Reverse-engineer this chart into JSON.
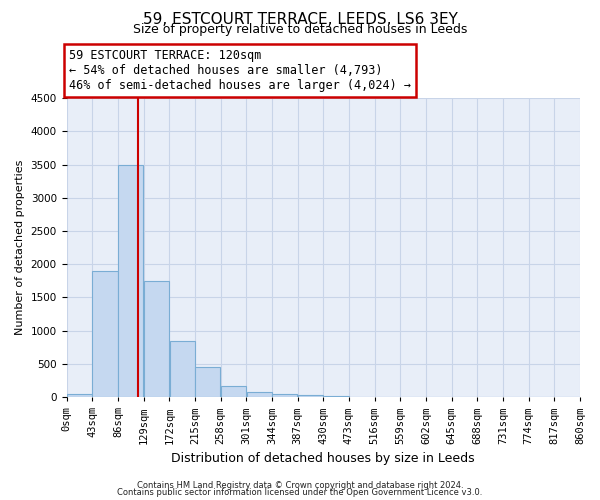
{
  "title": "59, ESTCOURT TERRACE, LEEDS, LS6 3EY",
  "subtitle": "Size of property relative to detached houses in Leeds",
  "xlabel": "Distribution of detached houses by size in Leeds",
  "ylabel": "Number of detached properties",
  "bin_edges": [
    0,
    43,
    86,
    129,
    172,
    215,
    258,
    301,
    344,
    387,
    430,
    473,
    516,
    559,
    602,
    645,
    688,
    731,
    774,
    817,
    860
  ],
  "bar_heights": [
    50,
    1900,
    3500,
    1750,
    850,
    450,
    170,
    80,
    40,
    30,
    10,
    5,
    2,
    1,
    0,
    0,
    0,
    0,
    0,
    0
  ],
  "bar_color": "#c5d8f0",
  "bar_edge_color": "#7aadd4",
  "property_size": 120,
  "ylim": [
    0,
    4500
  ],
  "yticks": [
    0,
    500,
    1000,
    1500,
    2000,
    2500,
    3000,
    3500,
    4000,
    4500
  ],
  "annotation_title": "59 ESTCOURT TERRACE: 120sqm",
  "annotation_line1": "← 54% of detached houses are smaller (4,793)",
  "annotation_line2": "46% of semi-detached houses are larger (4,024) →",
  "annotation_box_color": "#ffffff",
  "annotation_box_edge": "#cc0000",
  "red_line_color": "#cc0000",
  "footer1": "Contains HM Land Registry data © Crown copyright and database right 2024.",
  "footer2": "Contains public sector information licensed under the Open Government Licence v3.0.",
  "grid_color": "#c8d4e8",
  "background_color": "#ffffff",
  "plot_bg_color": "#e8eef8",
  "title_fontsize": 11,
  "subtitle_fontsize": 9,
  "tick_label_fontsize": 7.5,
  "annotation_fontsize": 8.5
}
